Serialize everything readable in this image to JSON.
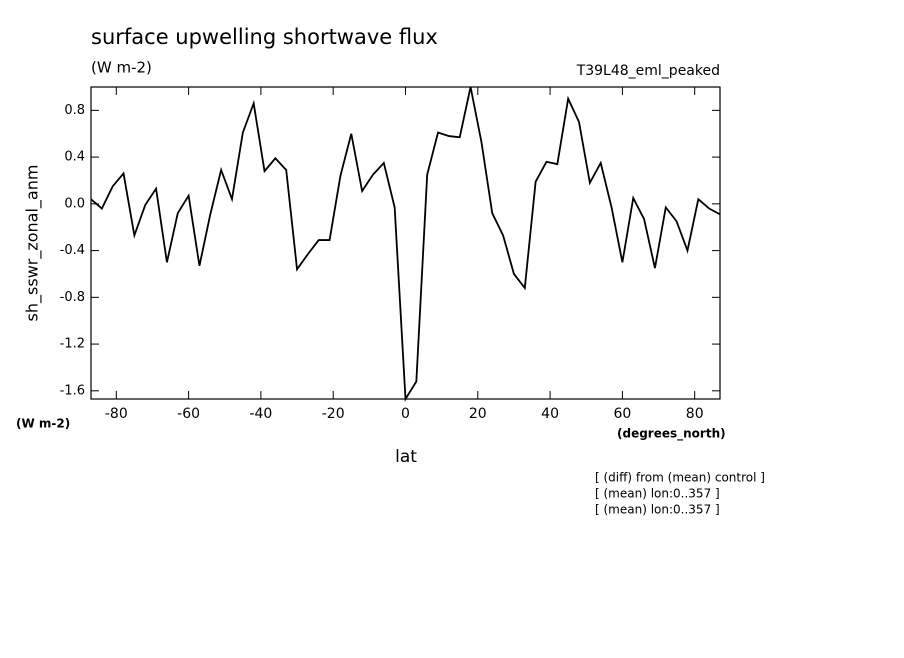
{
  "chart_data": {
    "type": "line",
    "title": "surface upwelling shortwave flux",
    "subtitle": "(W m-2)",
    "annotation": "T39L48_eml_peaked",
    "ylabel": "sh_sswr_zonal_anm",
    "y_units": "(W m-2)",
    "xlabel": "lat",
    "x_units": "(degrees_north)",
    "notes": [
      "[ (diff) from (mean) control ]",
      "[ (mean) lon:0..357 ]",
      "[ (mean) lon:0..357 ]"
    ],
    "x": [
      -87,
      -84,
      -81,
      -78,
      -75,
      -72,
      -69,
      -66,
      -63,
      -60,
      -57,
      -54,
      -51,
      -48,
      -45,
      -42,
      -39,
      -36,
      -33,
      -30,
      -27,
      -24,
      -21,
      -18,
      -15,
      -12,
      -9,
      -6,
      -3,
      0,
      3,
      6,
      9,
      12,
      15,
      18,
      21,
      24,
      27,
      30,
      33,
      36,
      39,
      42,
      45,
      48,
      51,
      54,
      57,
      60,
      63,
      66,
      69,
      72,
      75,
      78,
      81,
      84,
      87
    ],
    "series": [
      {
        "name": "sh_sswr_zonal_anm",
        "color": "#000000",
        "values": [
          0.04,
          -0.04,
          0.15,
          0.26,
          -0.27,
          -0.01,
          0.13,
          -0.5,
          -0.08,
          0.07,
          -0.53,
          -0.09,
          0.29,
          0.04,
          0.61,
          0.86,
          0.28,
          0.39,
          0.29,
          -0.56,
          -0.43,
          -0.31,
          -0.31,
          0.24,
          0.6,
          0.11,
          0.25,
          0.35,
          -0.03,
          -1.67,
          -1.52,
          0.25,
          0.61,
          0.58,
          0.57,
          1.0,
          0.53,
          -0.08,
          -0.27,
          -0.6,
          -0.72,
          0.19,
          0.36,
          0.34,
          0.9,
          0.7,
          0.18,
          0.35,
          -0.03,
          -0.5,
          0.05,
          -0.13,
          -0.55,
          -0.03,
          -0.15,
          -0.4,
          0.04,
          -0.04,
          -0.09
        ]
      }
    ],
    "xlim": [
      -87,
      87
    ],
    "xticks": [
      -80,
      -60,
      -40,
      -20,
      0,
      20,
      40,
      60,
      80
    ],
    "ylim": [
      -1.67,
      1.0
    ],
    "yticks": [
      0.8,
      0.4,
      {
        "value": 0,
        "label": "0.0"
      },
      -0.4,
      -0.8,
      -1.2,
      -1.6
    ]
  }
}
